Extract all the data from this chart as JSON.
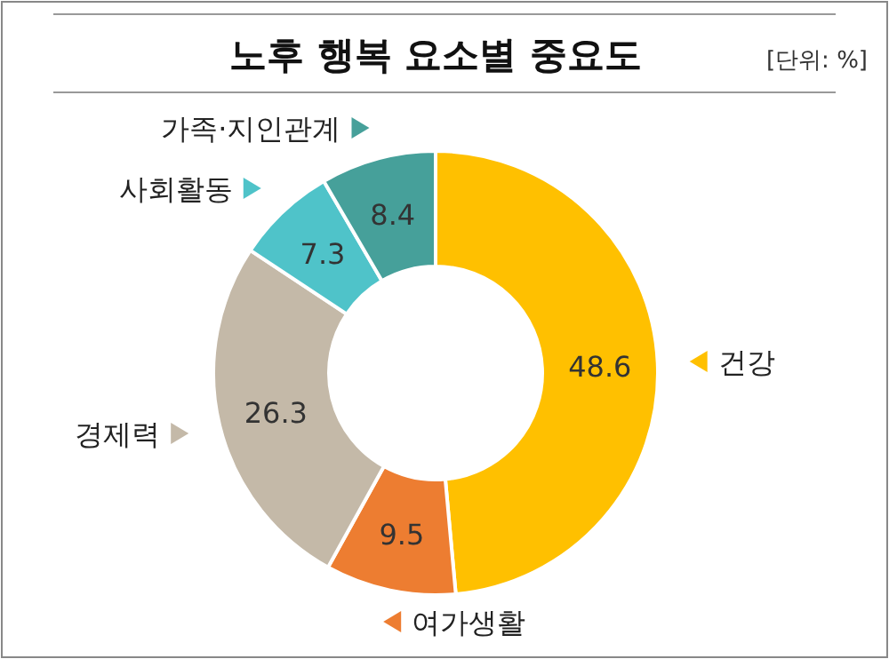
{
  "chart_data": {
    "type": "donut",
    "title": "노후 행복 요소별 중요도",
    "annotations": [
      "[단위: %]"
    ],
    "categories": [
      "건강",
      "여가생활",
      "경제력",
      "사회활동",
      "가족·지인관계"
    ],
    "values": [
      48.6,
      9.5,
      26.3,
      7.3,
      8.4
    ],
    "colors": [
      "#ffc000",
      "#ed7d31",
      "#c4b9a8",
      "#4fc3c9",
      "#46a09a"
    ],
    "data_labels": true,
    "legend": "left"
  }
}
